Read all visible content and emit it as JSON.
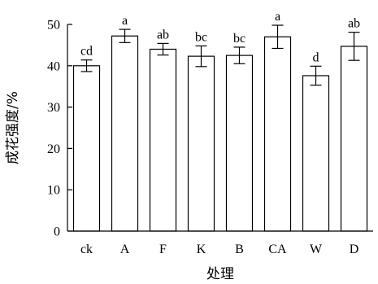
{
  "chart_data": {
    "type": "bar",
    "xlabel": "处理",
    "ylabel": "成花强度/%",
    "ylim": [
      0,
      50
    ],
    "yticks": [
      0,
      10,
      20,
      30,
      40,
      50
    ],
    "categories": [
      "ck",
      "A",
      "F",
      "K",
      "B",
      "CA",
      "W",
      "D"
    ],
    "values": [
      40.0,
      47.2,
      44.0,
      42.3,
      42.5,
      47.0,
      37.6,
      44.7
    ],
    "errors": [
      1.4,
      1.6,
      1.4,
      2.5,
      2.0,
      2.8,
      2.3,
      3.4
    ],
    "significance": [
      "cd",
      "a",
      "ab",
      "bc",
      "bc",
      "a",
      "d",
      "ab"
    ],
    "bar_fill": "#ffffff",
    "bar_stroke": "#000000",
    "grid": false,
    "legend": "none"
  }
}
